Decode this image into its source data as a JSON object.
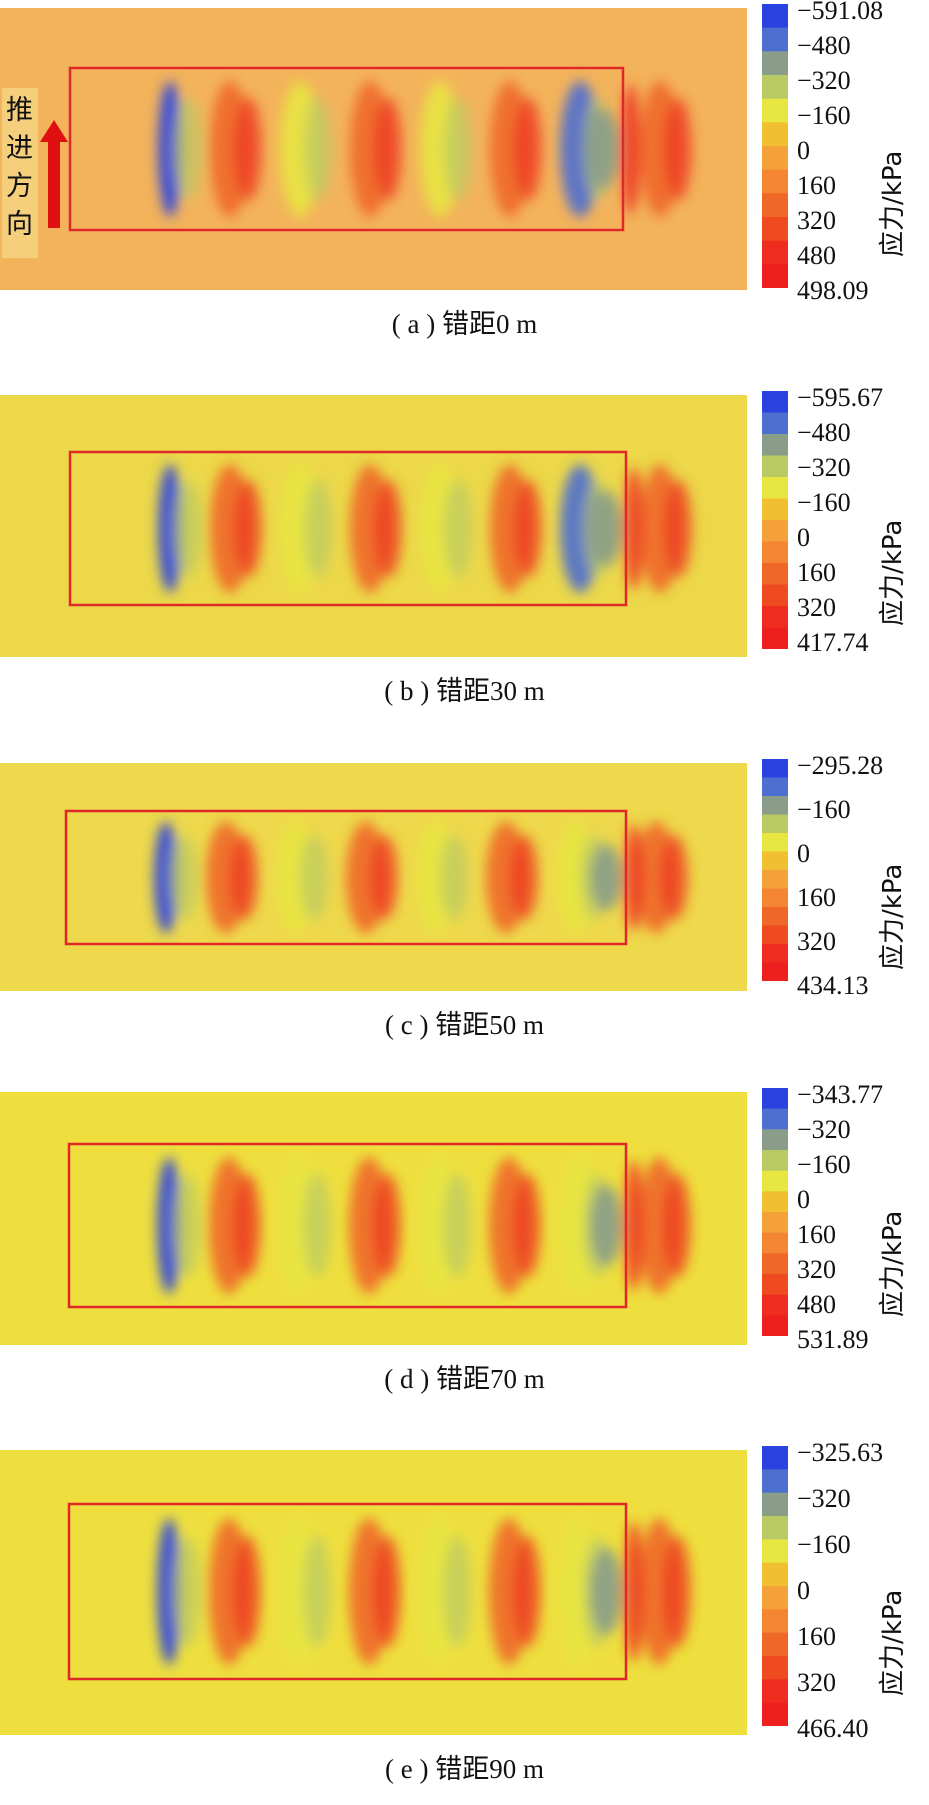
{
  "push_direction_label": "推进方向",
  "colors": {
    "frame": "#e0282a",
    "arrow": "#e01010"
  },
  "chart_data": [
    {
      "type": "heatmap",
      "caption": "( a ) 错距0 m",
      "colorbar_label": "应力/kPa",
      "colorbar_max_label": "−591.08",
      "colorbar_min_label": "498.09",
      "colorbar_ticks": [
        "−591.08",
        "−480",
        "−320",
        "−160",
        "0",
        "160",
        "320",
        "480",
        "498.09"
      ],
      "stress_range_kpa": [
        -591.08,
        498.09
      ],
      "background": "#f3b35b"
    },
    {
      "type": "heatmap",
      "caption": "( b ) 错距30 m",
      "colorbar_label": "应力/kPa",
      "colorbar_max_label": "−595.67",
      "colorbar_min_label": "417.74",
      "colorbar_ticks": [
        "−595.67",
        "−480",
        "−320",
        "−160",
        "0",
        "160",
        "320",
        "417.74"
      ],
      "stress_range_kpa": [
        -595.67,
        417.74
      ],
      "background": "#ecd849"
    },
    {
      "type": "heatmap",
      "caption": "( c ) 错距50 m",
      "colorbar_label": "应力/kPa",
      "colorbar_max_label": "−295.28",
      "colorbar_min_label": "434.13",
      "colorbar_ticks": [
        "−295.28",
        "−160",
        "0",
        "160",
        "320",
        "434.13"
      ],
      "stress_range_kpa": [
        -295.28,
        434.13
      ],
      "background": "#eed84b"
    },
    {
      "type": "heatmap",
      "caption": "( d ) 错距70 m",
      "colorbar_label": "应力/kPa",
      "colorbar_max_label": "−343.77",
      "colorbar_min_label": "531.89",
      "colorbar_ticks": [
        "−343.77",
        "−320",
        "−160",
        "0",
        "160",
        "320",
        "480",
        "531.89"
      ],
      "stress_range_kpa": [
        -343.77,
        531.89
      ],
      "background": "#eedf3e"
    },
    {
      "type": "heatmap",
      "caption": "( e ) 错距90 m",
      "colorbar_label": "应力/kPa",
      "colorbar_max_label": "−325.63",
      "colorbar_min_label": "466.40",
      "colorbar_ticks": [
        "−325.63",
        "−320",
        "−160",
        "0",
        "160",
        "320",
        "466.40"
      ],
      "stress_range_kpa": [
        -325.63,
        466.4
      ],
      "background": "#eedf3e"
    }
  ]
}
